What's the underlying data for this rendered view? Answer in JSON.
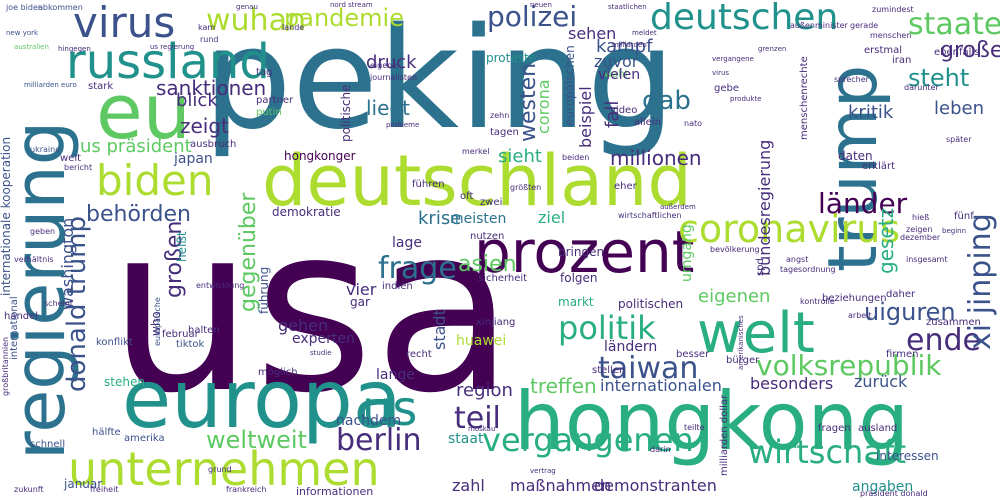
{
  "palette": {
    "dark_purple": "#440154",
    "purple": "#472d7b",
    "indigo": "#3b528b",
    "blue": "#2c728e",
    "teal": "#21918c",
    "green": "#28ae80",
    "light_green": "#5ec962",
    "lime": "#addc30",
    "yellow": "#fde725"
  },
  "words": {
    "usa": "usa",
    "peking": "peking",
    "deutschland": "deutschland",
    "regierung": "regierung",
    "trump": "trump",
    "europa": "europa",
    "hongkong": "hongkong",
    "unternehmen": "unternehmen",
    "prozent": "prozent",
    "welt": "welt",
    "eu": "eu",
    "russland": "russland",
    "virus": "virus",
    "deutschen": "deutschen",
    "biden": "biden",
    "coronavirus": "coronavirus",
    "wuhan": "wuhan",
    "pandemie": "pandemie",
    "polizei": "polizei",
    "staaten": "staaten",
    "us": "us",
    "vergangenen": "vergangenen",
    "wirtschaft": "wirtschaft",
    "politik": "politik",
    "taiwan": "taiwan",
    "berlin": "berlin",
    "volksrepublik": "volksrepublik",
    "ende": "ende",
    "frage": "frage",
    "weltweit": "weltweit",
    "teil": "teil",
    "behoerden": "behörden",
    "laender": "länder",
    "donald_trump": "donald trump",
    "xi_jinping": "xi jinping",
    "uiguren": "uiguren",
    "grosse": "große",
    "steht": "steht",
    "kritik": "kritik",
    "leben": "leben",
    "gab": "gab",
    "sanktionen": "sanktionen",
    "blick": "blick",
    "zeigt": "zeigt",
    "us_praesident": "us präsident",
    "liegt": "liegt",
    "millionen": "millionen",
    "sieht": "sieht",
    "krise": "krise",
    "meisten": "meisten",
    "ziel": "ziel",
    "westen": "westen",
    "gegenueber": "gegenüber",
    "grossen": "großen",
    "druck": "druck",
    "kampf": "kampf",
    "zuvor": "zuvor",
    "sehen": "sehen",
    "proteste": "proteste",
    "demokratie": "demokratie",
    "hongkonger": "hongkonger",
    "washington": "washington",
    "asien": "asien",
    "vier": "vier",
    "gehen": "gehen",
    "experten": "experten",
    "lange": "lange",
    "nachdem": "nachdem",
    "region": "region",
    "staat": "staat",
    "besonders": "besonders",
    "zurueck": "zurück",
    "treffen": "treffen",
    "internationalen": "internationalen",
    "demonstranten": "demonstranten",
    "massnahmen": "maßnahmen",
    "zahl": "zahl",
    "eigenen": "eigenen",
    "laendern": "ländern",
    "gesetz": "gesetz",
    "bundesregierung": "bundesregierung",
    "beispiel": "beispiel",
    "fall": "fall",
    "corona": "corona",
    "stadt": "stadt",
    "huawei": "huawei",
    "angaben": "angaben",
    "interessen": "interessen",
    "informationen": "informationen",
    "januar": "januar",
    "amerika": "amerika",
    "schnell": "schnell",
    "haelfte": "hälfte",
    "stehen": "stehen",
    "internationale_kooperation": "internationale kooperation",
    "international": "international",
    "handel": "handel",
    "konflikt": "konflikt",
    "tiktok": "tiktok",
    "februar": "februar",
    "fuehrung": "führung",
    "heisst": "heißt",
    "who": "who",
    "japan": "japan",
    "ausbruch": "ausbruch",
    "politische": "politische",
    "lage": "lage",
    "xinjiang": "xinjiang",
    "politischen": "politischen",
    "markt": "markt",
    "folgen": "folgen",
    "bringen": "bringen",
    "zusammen": "zusammen",
    "daher": "daher",
    "beziehungen": "beziehungen",
    "firmen": "firmen",
    "recht": "recht",
    "umgang": "umgang",
    "bevoelkerung": "bevölkerung",
    "sicherheit": "sicherheit",
    "gar": "gar",
    "indien": "indien",
    "daten": "daten",
    "erklaert": "erklärt",
    "iran": "iran",
    "erstmal": "erstmal",
    "ebenfalls": "ebenfalls",
    "menschenrechte": "menschenrechte",
    "zumindest": "zumindest",
    "kommunistischen_partei": "kommunistischen partei",
    "abkommen": "abkommen",
    "joe_biden": "joe biden",
    "new_york": "new york",
    "australien": "australien",
    "milliarden_euro": "milliarden euro",
    "wahl": "wahl",
    "europaeischen": "europäischen",
    "europaeische": "europäische",
    "vielen": "vielen",
    "video": "video",
    "allein": "allein",
    "nato": "nato",
    "gebe": "gebe",
    "tagen": "tagen",
    "putin": "putin",
    "partner": "partner",
    "journalisten": "journalisten",
    "eigene": "eigene",
    "tag": "tag",
    "stark": "stark",
    "ukraine": "ukraine",
    "weit": "weit",
    "bericht": "bericht",
    "geben": "geben",
    "verhaeltnis": "verhältnis",
    "scheint": "scheint",
    "spd": "spd",
    "kontrolle": "kontrolle",
    "bürger": "bürger",
    "besser": "besser",
    "stellen": "stellen",
    "merkel": "merkel",
    "beiden": "beiden",
    "eher": "eher",
    "oft": "oft",
    "fuehren": "führen",
    "groessten": "größten",
    "nutzen": "nutzen",
    "halten": "halten",
    "entwicklung": "entwicklung",
    "moeglich": "möglich",
    "zwei": "zwei",
    "teilte": "teilte",
    "darin": "darin",
    "fragen": "fragen",
    "ausland": "ausland",
    "fuenf": "fünf",
    "frankreich": "frankreich",
    "freiheit": "freiheit",
    "zukunft": "zukunft",
    "grund": "grund",
    "kam": "kam",
    "rund": "rund",
    "lande": "lande",
    "aussenminister": "außenminister",
    "gerade": "gerade",
    "menschen": "menschen",
    "sprecher": "sprecher",
    "darunter": "darunter",
    "moskau": "moskau",
    "zeigen": "zeigen",
    "dezember": "dezember",
    "hiess": "hieß",
    "spaeter": "später",
    "europa_small": "europa",
    "angst": "angst",
    "arbeit": "arbeit",
    "studie": "studie",
    "tagesordnung": "tagesordnung",
    "nord_stream": "nord stream",
    "milliarden_dollar": "milliarden dollar",
    "grossbritannien": "großbritannien",
    "praesident_donald": "präsident donald",
    "vertrag": "vertrag",
    "hingegen": "hingegen",
    "us_regierung": "us regierung",
    "genau": "genau",
    "amerikanisches": "amerikanisches",
    "milliarden": "milliarden",
    "meldet": "meldet",
    "beginn": "beginn",
    "ausserdem": "außerdem",
    "vergangene": "vergangene",
    "insgesamt": "insgesamt",
    "virus_small": "virus",
    "produkte": "produkte",
    "zehn": "zehn",
    "grenzen": "grenzen",
    "probleme": "probleme",
    "internationalen_small": "internationalen",
    "wirtschaftlichen": "wirtschaftlichen",
    "neuen": "neuen",
    "staatlichen": "staatlichen"
  }
}
